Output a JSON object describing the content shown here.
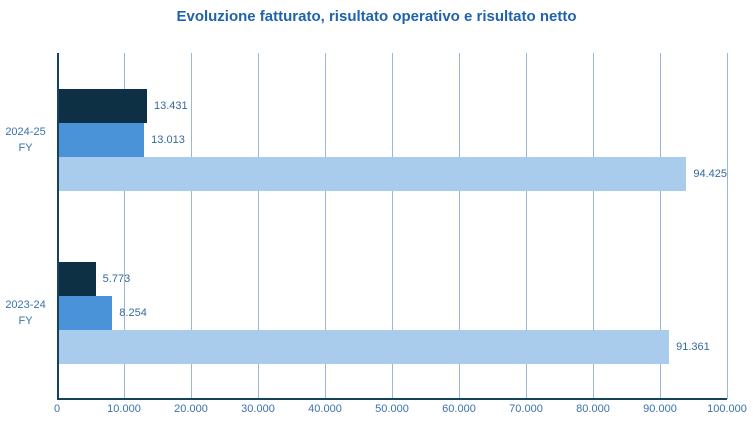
{
  "chart_data": {
    "type": "bar",
    "orientation": "horizontal",
    "title": "Evoluzione fatturato, risultato operativo e risultato netto",
    "categories": [
      "2024-25 FY",
      "2023-24 FY"
    ],
    "category_display_lines": [
      [
        "2024-25",
        "FY"
      ],
      [
        "2023-24",
        "FY"
      ]
    ],
    "series": [
      {
        "name": "risultato-netto",
        "color": "#0d3044",
        "values": [
          13431,
          5773
        ],
        "labels": [
          "13.431",
          "5.773"
        ]
      },
      {
        "name": "risultato-operativo",
        "color": "#4b93d8",
        "values": [
          13013,
          8254
        ],
        "labels": [
          "13.013",
          "8.254"
        ]
      },
      {
        "name": "fatturato",
        "color": "#a9cbec",
        "values": [
          94425,
          91361
        ],
        "labels": [
          "94.425",
          "91.361"
        ]
      }
    ],
    "xlim": [
      0,
      100000
    ],
    "x_ticks": [
      "0",
      "10.000",
      "20.000",
      "30.000",
      "40.000",
      "50.000",
      "60.000",
      "70.000",
      "80.000",
      "90.000",
      "100.000"
    ],
    "grid": "vertical",
    "legend": "none",
    "colors": {
      "title": "#1f62ae",
      "axis_line": "#15425c",
      "gridline": "#9bb7d3",
      "tick_label": "#3a72ad",
      "data_label": "#35699f",
      "background": "#ffffff"
    }
  }
}
